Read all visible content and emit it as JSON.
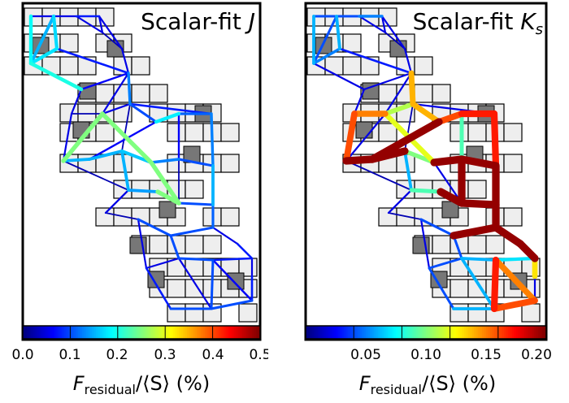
{
  "panels": [
    {
      "title": "Scalar-fit J",
      "title_main": "Scalar-fit ",
      "title_italic": "J",
      "title_sub": "",
      "colorbar": {
        "ticks": [
          "0.0",
          "0.1",
          "0.2",
          "0.3",
          "0.4",
          "0.5"
        ],
        "label_main": "F",
        "label_sub": "residual",
        "label_rest": "/⟨S⟩ (%)"
      }
    },
    {
      "title": "Scalar-fit Ks",
      "title_main": "Scalar-fit ",
      "title_italic": "K",
      "title_sub": "s",
      "colorbar": {
        "ticks": [
          "0.05",
          "0.10",
          "0.15",
          "0.20"
        ],
        "label_main": "F",
        "label_sub": "residual",
        "label_rest": "/⟨S⟩ (%)"
      }
    }
  ],
  "colors": {
    "frame": "#000000",
    "tile_light": "#eeeeee",
    "tile_dark": "#777777"
  }
}
